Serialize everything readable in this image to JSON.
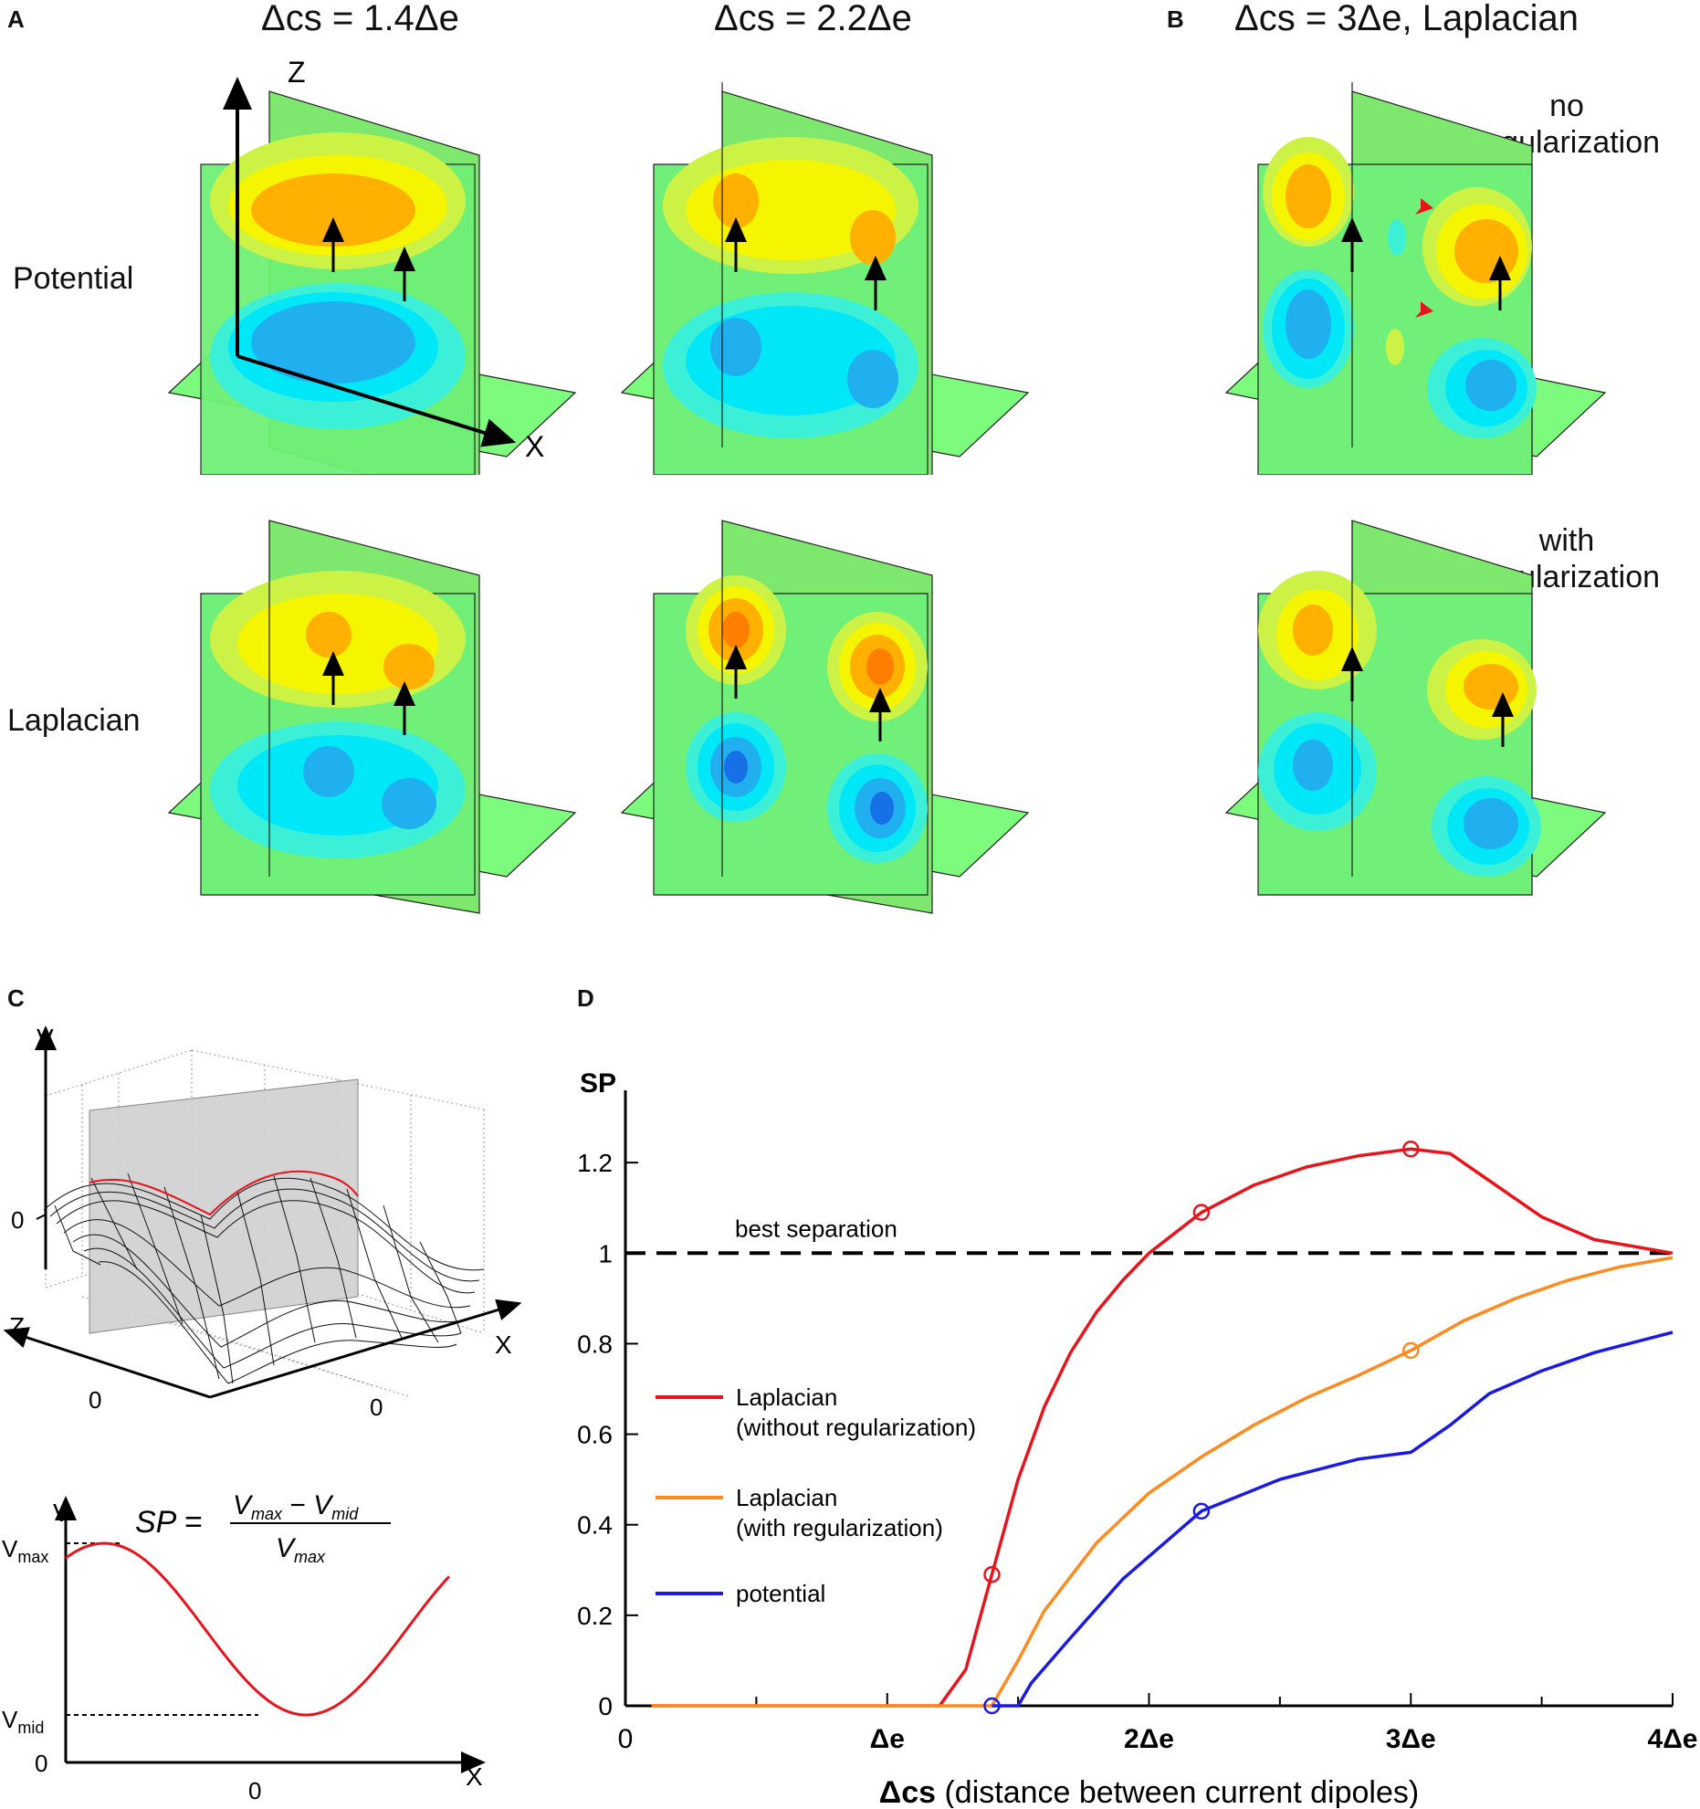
{
  "panel_labels": {
    "a": "A",
    "b": "B",
    "c": "C",
    "d": "D"
  },
  "titles": {
    "col1": "Δcs = 1.4Δe",
    "col2": "Δcs = 2.2Δe",
    "col3": "Δcs = 3Δe, Laplacian"
  },
  "row_labels": {
    "top": "Potential",
    "bottom": "Laplacian"
  },
  "notes": {
    "no_reg": [
      "no",
      "regularization"
    ],
    "with_reg": [
      "with",
      "regularization"
    ]
  },
  "axes3d": {
    "z": "Z",
    "x": "X"
  },
  "panel_c": {
    "mesh_axes": {
      "v": "V",
      "z": "Z",
      "x": "X",
      "zero_v": "0",
      "zero_z": "0",
      "zero_x": "0"
    },
    "profile_axes": {
      "v": "V",
      "x": "X",
      "zero_x": "0",
      "zero_v": "0"
    },
    "vmax": {
      "main": "V",
      "sub": "max"
    },
    "vmid": {
      "main": "V",
      "sub": "mid"
    },
    "formula": {
      "lhs": "SP = ",
      "num_a": "V",
      "num_a_sub": "max",
      "minus": " − ",
      "num_b": "V",
      "num_b_sub": "mid",
      "den": "V",
      "den_sub": "max"
    },
    "colors": {
      "curve": "#e8141c"
    }
  },
  "chart_data": {
    "type": "line",
    "ylabel": "SP",
    "xlabel": "Δcs (distance between current dipoles)",
    "xlabel_parts": {
      "bold": "Δcs",
      "rest": " (distance between current dipoles)"
    },
    "xlim": [
      0,
      4
    ],
    "ylim": [
      0,
      1.4
    ],
    "x_ticks": [
      {
        "v": 0,
        "label": "0",
        "bold": false
      },
      {
        "v": 1,
        "label": "Δe",
        "bold": true
      },
      {
        "v": 2,
        "label": "2Δe",
        "bold": true
      },
      {
        "v": 3,
        "label": "3Δe",
        "bold": true
      },
      {
        "v": 4,
        "label": "4Δe",
        "bold": true
      }
    ],
    "x_minor": [
      0.5,
      1.5,
      2.5,
      3.5
    ],
    "y_ticks": [
      {
        "v": 0,
        "label": "0"
      },
      {
        "v": 0.2,
        "label": "0.2"
      },
      {
        "v": 0.4,
        "label": "0.4"
      },
      {
        "v": 0.6,
        "label": "0.6"
      },
      {
        "v": 0.8,
        "label": "0.8"
      },
      {
        "v": 1,
        "label": "1"
      },
      {
        "v": 1.2,
        "label": "1.2"
      }
    ],
    "reference": {
      "y": 1,
      "label": "best separation"
    },
    "series": [
      {
        "name": "Laplacian",
        "sub": "(without regularization)",
        "color": "#e8141c",
        "x": [
          0.1,
          1.2,
          1.3,
          1.4,
          1.5,
          1.6,
          1.7,
          1.8,
          1.9,
          2.0,
          2.2,
          2.4,
          2.6,
          2.8,
          3.0,
          3.15,
          3.3,
          3.5,
          3.7,
          4.0
        ],
        "y": [
          0,
          0,
          0.08,
          0.29,
          0.5,
          0.66,
          0.78,
          0.87,
          0.94,
          1.0,
          1.09,
          1.15,
          1.19,
          1.215,
          1.23,
          1.22,
          1.16,
          1.08,
          1.03,
          1.0
        ],
        "markers": [
          {
            "x": 1.4,
            "y": 0.29
          },
          {
            "x": 2.2,
            "y": 1.09
          },
          {
            "x": 3.0,
            "y": 1.23
          }
        ]
      },
      {
        "name": "Laplacian",
        "sub": "(with regularization)",
        "color": "#ff8a1e",
        "x": [
          0.1,
          1.4,
          1.5,
          1.6,
          1.8,
          2.0,
          2.2,
          2.4,
          2.6,
          2.8,
          3.0,
          3.2,
          3.4,
          3.6,
          3.8,
          4.0
        ],
        "y": [
          0,
          0,
          0.1,
          0.21,
          0.36,
          0.47,
          0.55,
          0.62,
          0.68,
          0.73,
          0.785,
          0.85,
          0.9,
          0.94,
          0.97,
          0.99
        ],
        "markers": [
          {
            "x": 3.0,
            "y": 0.785
          }
        ]
      },
      {
        "name": "potential",
        "sub": "",
        "color": "#1a1ae6",
        "x": [
          1.4,
          1.5,
          1.55,
          1.7,
          1.9,
          2.2,
          2.5,
          2.8,
          3.0,
          3.15,
          3.3,
          3.5,
          3.7,
          4.0
        ],
        "y": [
          0,
          0,
          0.05,
          0.15,
          0.28,
          0.43,
          0.5,
          0.545,
          0.56,
          0.62,
          0.69,
          0.74,
          0.78,
          0.825
        ],
        "markers": [
          {
            "x": 1.4,
            "y": 0
          },
          {
            "x": 2.2,
            "y": 0.43
          }
        ]
      }
    ]
  }
}
